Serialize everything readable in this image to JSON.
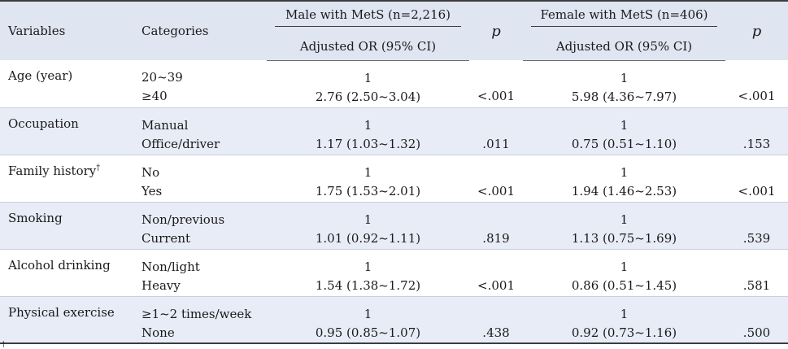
{
  "header": {
    "variables": "Variables",
    "categories": "Categories",
    "male_group": "Male with MetS (n=2,216)",
    "female_group": "Female with MetS (n=406)",
    "p": "p",
    "or_label": "Adjusted OR (95% CI)"
  },
  "rows": [
    {
      "variable": "Age (year)",
      "sup": "",
      "cat1": "20~39",
      "cat2": "≥40",
      "male_ref": "1",
      "male_est": "2.76  (2.50~3.04)",
      "male_p": "<.001",
      "female_ref": "1",
      "female_est": "5.98  (4.36~7.97)",
      "female_p": "<.001"
    },
    {
      "variable": "Occupation",
      "sup": "",
      "cat1": "Manual",
      "cat2": "Office/driver",
      "male_ref": "1",
      "male_est": "1.17  (1.03~1.32)",
      "male_p": ".011",
      "female_ref": "1",
      "female_est": "0.75  (0.51~1.10)",
      "female_p": ".153"
    },
    {
      "variable": "Family history",
      "sup": "†",
      "cat1": "No",
      "cat2": "Yes",
      "male_ref": "1",
      "male_est": "1.75  (1.53~2.01)",
      "male_p": "<.001",
      "female_ref": "1",
      "female_est": "1.94  (1.46~2.53)",
      "female_p": "<.001"
    },
    {
      "variable": "Smoking",
      "sup": "",
      "cat1": "Non/previous",
      "cat2": "Current",
      "male_ref": "1",
      "male_est": "1.01  (0.92~1.11)",
      "male_p": ".819",
      "female_ref": "1",
      "female_est": "1.13  (0.75~1.69)",
      "female_p": ".539"
    },
    {
      "variable": "Alcohol drinking",
      "sup": "",
      "cat1": "Non/light",
      "cat2": "Heavy",
      "male_ref": "1",
      "male_est": "1.54  (1.38~1.72)",
      "male_p": "<.001",
      "female_ref": "1",
      "female_est": "0.86  (0.51~1.45)",
      "female_p": ".581"
    },
    {
      "variable": "Physical exercise",
      "sup": "",
      "cat1": "≥1~2 times/week",
      "cat2": "None",
      "male_ref": "1",
      "male_est": "0.95 (0.85~1.07)",
      "male_p": ".438",
      "female_ref": "1",
      "female_est": "0.92  (0.73~1.16)",
      "female_p": ".500"
    }
  ],
  "footnote_mark": "†"
}
